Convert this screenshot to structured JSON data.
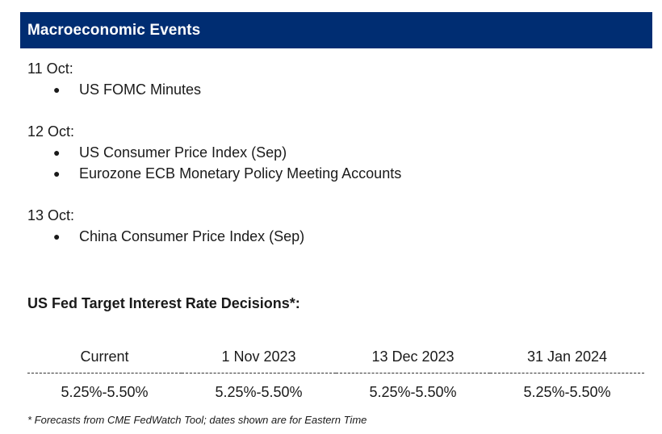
{
  "header": {
    "title": "Macroeconomic Events"
  },
  "events": [
    {
      "date": "11 Oct:",
      "items": [
        "US FOMC Minutes"
      ]
    },
    {
      "date": "12 Oct:",
      "items": [
        "US Consumer Price Index (Sep)",
        "Eurozone ECB Monetary Policy Meeting Accounts"
      ]
    },
    {
      "date": "13 Oct:",
      "items": [
        "China Consumer Price Index (Sep)"
      ]
    }
  ],
  "rates": {
    "title": "US Fed Target Interest Rate Decisions*:",
    "columns": [
      "Current",
      "1 Nov 2023",
      "13 Dec 2023",
      "31 Jan 2024"
    ],
    "values": [
      "5.25%-5.50%",
      "5.25%-5.50%",
      "5.25%-5.50%",
      "5.25%-5.50%"
    ]
  },
  "footnote": "* Forecasts from CME FedWatch Tool; dates shown are for Eastern Time",
  "colors": {
    "header_bg": "#002d72",
    "header_text": "#ffffff"
  }
}
